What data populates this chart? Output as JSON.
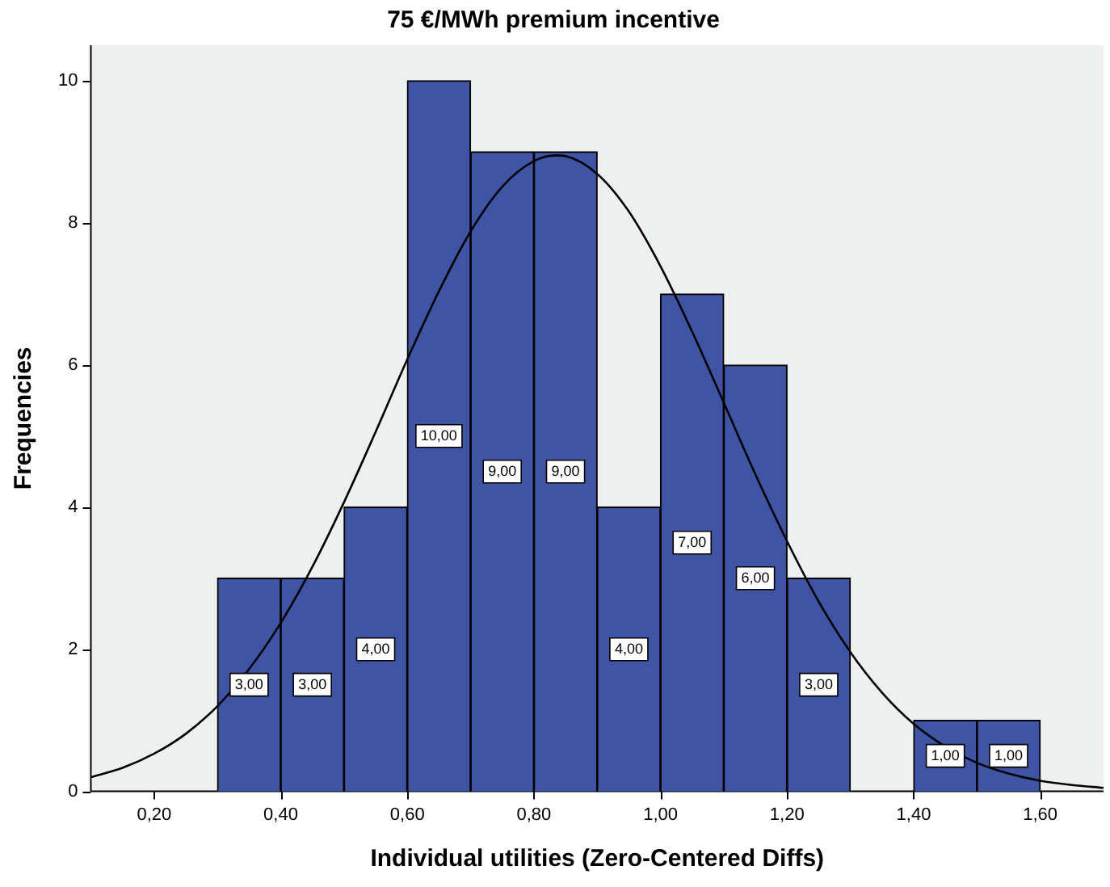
{
  "chart_data": {
    "type": "histogram",
    "title": "75 €/MWh premium incentive",
    "xlabel": "Individual utilities (Zero-Centered Diffs)",
    "ylabel": "Frequencies",
    "bins": [
      0.3,
      0.4,
      0.5,
      0.6,
      0.7,
      0.8,
      0.9,
      1.0,
      1.1,
      1.2,
      1.3,
      1.4,
      1.5,
      1.6
    ],
    "series": [
      {
        "color": "#3f54a5",
        "values": [
          3,
          3,
          4,
          10,
          9,
          9,
          4,
          7,
          6,
          3,
          0,
          1,
          1
        ],
        "value_labels": [
          "3,00",
          "3,00",
          "4,00",
          "10,00",
          "9,00",
          "9,00",
          "4,00",
          "7,00",
          "6,00",
          "3,00",
          null,
          "1,00",
          "1,00"
        ]
      },
      {
        "type": "line",
        "color": "#000000",
        "x": [
          0.1,
          0.15,
          0.2,
          0.25,
          0.3,
          0.35,
          0.4,
          0.45,
          0.5,
          0.55,
          0.6,
          0.65,
          0.7,
          0.75,
          0.8,
          0.835,
          0.85,
          0.9,
          0.95,
          1.0,
          1.05,
          1.1,
          1.15,
          1.2,
          1.25,
          1.3,
          1.35,
          1.4,
          1.45,
          1.5,
          1.55,
          1.6,
          1.65,
          1.7
        ],
        "values": [
          0.2,
          0.33,
          0.53,
          0.81,
          1.2,
          1.72,
          2.37,
          3.16,
          4.07,
          5.06,
          6.08,
          7.04,
          7.88,
          8.51,
          8.87,
          8.95,
          8.94,
          8.69,
          8.16,
          7.39,
          6.47,
          5.47,
          4.46,
          3.52,
          2.67,
          1.96,
          1.39,
          0.95,
          0.63,
          0.4,
          0.25,
          0.15,
          0.09,
          0.05
        ]
      }
    ],
    "xlim": [
      0.1,
      1.7
    ],
    "xticks": [
      {
        "value": 0.2,
        "label": "0,20"
      },
      {
        "value": 0.4,
        "label": "0,40"
      },
      {
        "value": 0.6,
        "label": "0,60"
      },
      {
        "value": 0.8,
        "label": "0,80"
      },
      {
        "value": 1.0,
        "label": "1,00"
      },
      {
        "value": 1.2,
        "label": "1,20"
      },
      {
        "value": 1.4,
        "label": "1,40"
      },
      {
        "value": 1.6,
        "label": "1,60"
      }
    ],
    "ylim": [
      0,
      10.5
    ],
    "yticks": [
      0,
      2,
      4,
      6,
      8,
      10
    ],
    "grid": false,
    "legend": false
  }
}
